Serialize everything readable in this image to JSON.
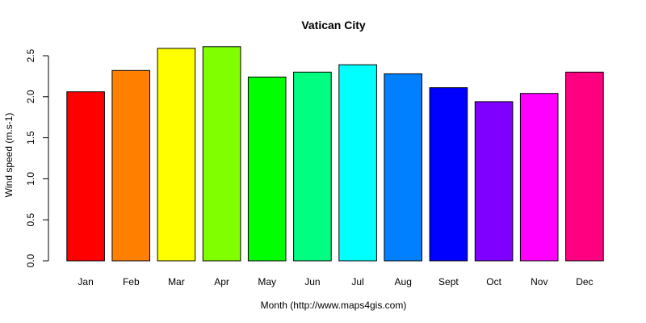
{
  "chart_data": {
    "type": "bar",
    "title": "Vatican City",
    "xlabel": "Month (http://www.maps4gis.com)",
    "ylabel": "Wind speed (m.s-1)",
    "categories": [
      "Jan",
      "Feb",
      "Mar",
      "Apr",
      "May",
      "Jun",
      "Jul",
      "Aug",
      "Sept",
      "Oct",
      "Nov",
      "Dec"
    ],
    "values": [
      2.06,
      2.32,
      2.59,
      2.61,
      2.24,
      2.3,
      2.39,
      2.28,
      2.11,
      1.94,
      2.04,
      2.3
    ],
    "colors": [
      "#FF0000",
      "#FF8000",
      "#FFFF00",
      "#80FF00",
      "#00FF00",
      "#00FF80",
      "#00FFFF",
      "#0080FF",
      "#0000FF",
      "#8000FF",
      "#FF00FF",
      "#FF0080"
    ],
    "yticks": [
      "0.0",
      "0.5",
      "1.0",
      "1.5",
      "2.0",
      "2.5"
    ],
    "ylim": [
      0,
      2.6
    ],
    "grid": false,
    "legend": "none"
  }
}
